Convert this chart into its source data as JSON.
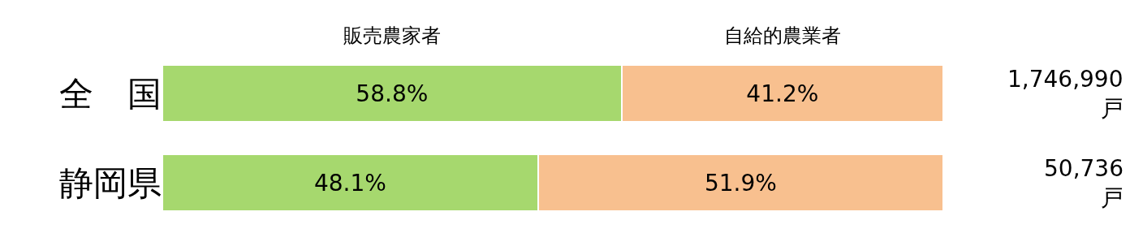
{
  "chart_data": {
    "type": "bar",
    "orientation": "horizontal",
    "stacked": true,
    "categories": [
      "全　国",
      "静岡県"
    ],
    "xlim": [
      0,
      100
    ],
    "tick_labels": "y",
    "series": [
      {
        "name": "販売農家者",
        "color": "#a6d86e",
        "values": [
          58.8,
          48.1
        ],
        "value_labels": [
          "58.8%",
          "48.1%"
        ]
      },
      {
        "name": "自給的農業者",
        "color": "#f8c08f",
        "values": [
          41.2,
          51.9
        ],
        "value_labels": [
          "41.2%",
          "51.9%"
        ]
      }
    ],
    "annotations": [
      "1,746,990\n戸",
      "50,736\n戸"
    ]
  }
}
